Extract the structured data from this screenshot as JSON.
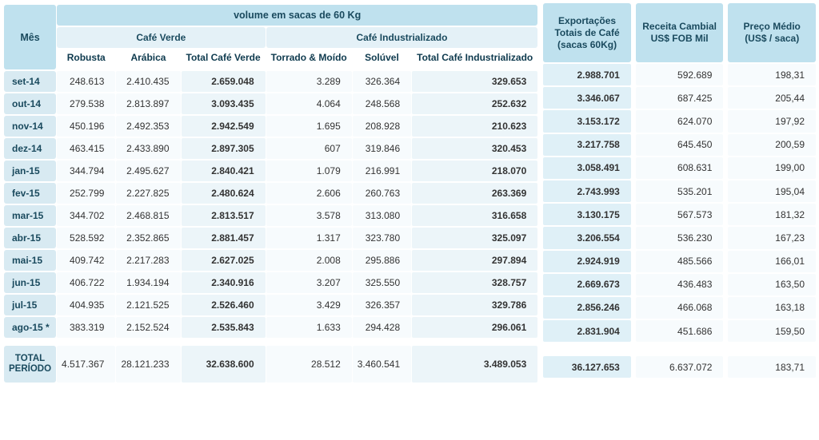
{
  "colors": {
    "header_strong": "#bfe1ee",
    "header_soft": "#e4f1f7",
    "month_bg": "#d8eaf2",
    "cell_bg": "#f7fbfd",
    "cell_bold_bg": "#ecf5f9",
    "right_val_bg": "#dff0f7",
    "text_header": "#1a4a5e",
    "text_body": "#333333"
  },
  "labels": {
    "mes": "Mês",
    "volume": "volume em sacas de 60 Kg",
    "cafe_verde": "Café Verde",
    "cafe_ind": "Café Industrializado",
    "robusta": "Robusta",
    "arabica": "Arábica",
    "total_verde": "Total Café Verde",
    "torrado": "Torrado & Moído",
    "soluvel": "Solúvel",
    "total_ind": "Total Café Industrializado",
    "export": "Exportações Totais de Café (sacas 60Kg)",
    "receita": "Receita Cambial US$ FOB Mil",
    "preco": "Preço Médio (US$ / saca)",
    "total_periodo": "TOTAL PERÍODO"
  },
  "rows": [
    {
      "m": "set-14",
      "robusta": "248.613",
      "arabica": "2.410.435",
      "tv": "2.659.048",
      "torrado": "3.289",
      "soluvel": "326.364",
      "ti": "329.653",
      "exp": "2.988.701",
      "rec": "592.689",
      "pre": "198,31"
    },
    {
      "m": "out-14",
      "robusta": "279.538",
      "arabica": "2.813.897",
      "tv": "3.093.435",
      "torrado": "4.064",
      "soluvel": "248.568",
      "ti": "252.632",
      "exp": "3.346.067",
      "rec": "687.425",
      "pre": "205,44"
    },
    {
      "m": "nov-14",
      "robusta": "450.196",
      "arabica": "2.492.353",
      "tv": "2.942.549",
      "torrado": "1.695",
      "soluvel": "208.928",
      "ti": "210.623",
      "exp": "3.153.172",
      "rec": "624.070",
      "pre": "197,92"
    },
    {
      "m": "dez-14",
      "robusta": "463.415",
      "arabica": "2.433.890",
      "tv": "2.897.305",
      "torrado": "607",
      "soluvel": "319.846",
      "ti": "320.453",
      "exp": "3.217.758",
      "rec": "645.450",
      "pre": "200,59"
    },
    {
      "m": "jan-15",
      "robusta": "344.794",
      "arabica": "2.495.627",
      "tv": "2.840.421",
      "torrado": "1.079",
      "soluvel": "216.991",
      "ti": "218.070",
      "exp": "3.058.491",
      "rec": "608.631",
      "pre": "199,00"
    },
    {
      "m": "fev-15",
      "robusta": "252.799",
      "arabica": "2.227.825",
      "tv": "2.480.624",
      "torrado": "2.606",
      "soluvel": "260.763",
      "ti": "263.369",
      "exp": "2.743.993",
      "rec": "535.201",
      "pre": "195,04"
    },
    {
      "m": "mar-15",
      "robusta": "344.702",
      "arabica": "2.468.815",
      "tv": "2.813.517",
      "torrado": "3.578",
      "soluvel": "313.080",
      "ti": "316.658",
      "exp": "3.130.175",
      "rec": "567.573",
      "pre": "181,32"
    },
    {
      "m": "abr-15",
      "robusta": "528.592",
      "arabica": "2.352.865",
      "tv": "2.881.457",
      "torrado": "1.317",
      "soluvel": "323.780",
      "ti": "325.097",
      "exp": "3.206.554",
      "rec": "536.230",
      "pre": "167,23"
    },
    {
      "m": "mai-15",
      "robusta": "409.742",
      "arabica": "2.217.283",
      "tv": "2.627.025",
      "torrado": "2.008",
      "soluvel": "295.886",
      "ti": "297.894",
      "exp": "2.924.919",
      "rec": "485.566",
      "pre": "166,01"
    },
    {
      "m": "jun-15",
      "robusta": "406.722",
      "arabica": "1.934.194",
      "tv": "2.340.916",
      "torrado": "3.207",
      "soluvel": "325.550",
      "ti": "328.757",
      "exp": "2.669.673",
      "rec": "436.483",
      "pre": "163,50"
    },
    {
      "m": "jul-15",
      "robusta": "404.935",
      "arabica": "2.121.525",
      "tv": "2.526.460",
      "torrado": "3.429",
      "soluvel": "326.357",
      "ti": "329.786",
      "exp": "2.856.246",
      "rec": "466.068",
      "pre": "163,18"
    },
    {
      "m": "ago-15 *",
      "robusta": "383.319",
      "arabica": "2.152.524",
      "tv": "2.535.843",
      "torrado": "1.633",
      "soluvel": "294.428",
      "ti": "296.061",
      "exp": "2.831.904",
      "rec": "451.686",
      "pre": "159,50"
    }
  ],
  "total": {
    "robusta": "4.517.367",
    "arabica": "28.121.233",
    "tv": "32.638.600",
    "torrado": "28.512",
    "soluvel": "3.460.541",
    "ti": "3.489.053",
    "exp": "36.127.653",
    "rec": "6.637.072",
    "pre": "183,71"
  }
}
